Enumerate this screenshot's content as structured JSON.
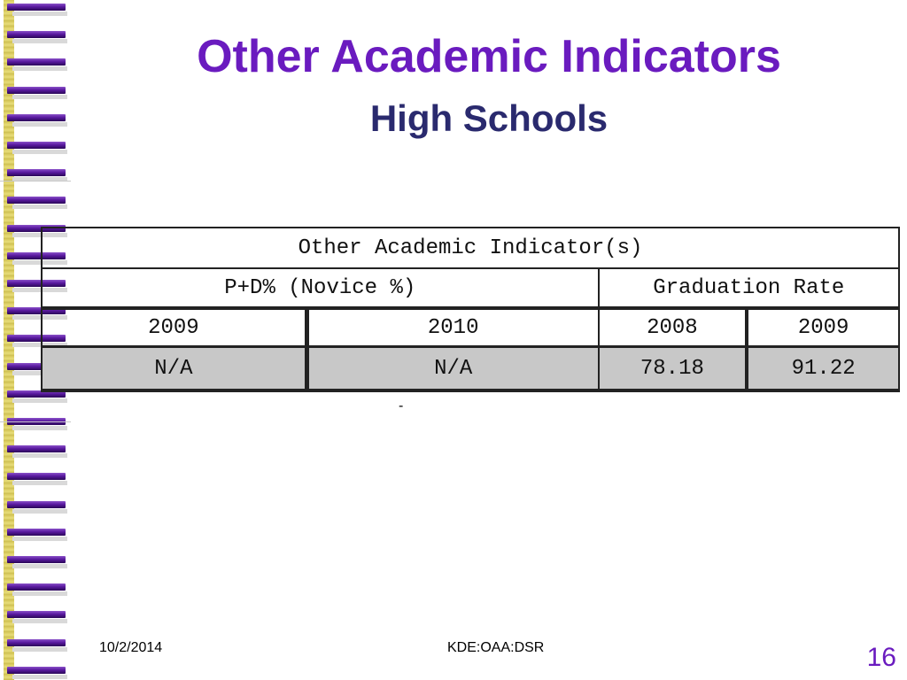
{
  "slide": {
    "title": "Other Academic Indicators",
    "subtitle": "High Schools"
  },
  "table": {
    "header": "Other Academic Indicator(s)",
    "groups": [
      "P+D% (Novice %)",
      "Graduation Rate"
    ],
    "years": [
      "2009",
      "2010",
      "2008",
      "2009"
    ],
    "values": [
      "N/A",
      "N/A",
      "78.18",
      "91.22"
    ]
  },
  "stray_mark": "-",
  "footer": {
    "date": "10/2/2014",
    "center": "KDE:OAA:DSR",
    "page_number": "16"
  },
  "colors": {
    "title": "#6a1bbf",
    "subtitle": "#2a2a6e",
    "value_row_fill": "#c8c8c8"
  }
}
